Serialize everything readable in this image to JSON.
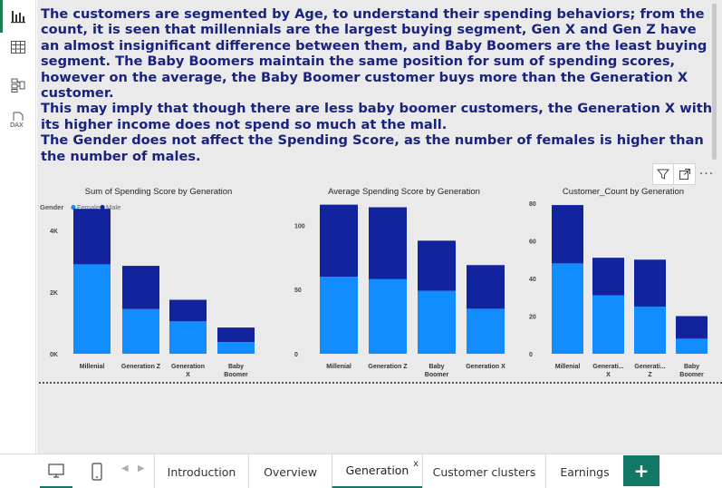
{
  "rail": {
    "items": [
      {
        "name": "report-view-icon",
        "active": true
      },
      {
        "name": "data-view-icon",
        "active": false
      },
      {
        "name": "model-view-icon",
        "active": false
      },
      {
        "name": "dax-query-view-icon",
        "active": false,
        "label": "DAX"
      }
    ]
  },
  "narrative": {
    "paragraphs": [
      "The customers are segmented by Age, to understand their spending behaviors; from the count, it is seen that millennials are the largest buying segment, Gen X and Gen Z have an almost insignificant difference between them, and Baby Boomers are the least buying segment. The Baby Boomers maintain the same position for sum of spending scores, however on the average, the Baby Boomer customer buys more than the Generation X customer.",
      "This may imply that though there are less baby boomer customers, the Generation X with its higher income does not spend so much at the mall.",
      "The Gender does not affect the Spending Score, as the number of females is higher than the number of males."
    ]
  },
  "visual_header": {
    "more_label": "···"
  },
  "colors": {
    "female": "#118dff",
    "male": "#12239e",
    "axis_text": "#444444",
    "title_text": "#252423"
  },
  "legend": {
    "title": "Gender",
    "items": [
      "Female",
      "Male"
    ]
  },
  "chart_data": [
    {
      "type": "bar",
      "stacked": true,
      "title": "Sum of Spending Score by Generation",
      "categories": [
        "Millenial",
        "Generation Z",
        "Generation X",
        "Baby Boomer"
      ],
      "series": [
        {
          "name": "Female",
          "values": [
            2900,
            1450,
            1050,
            380
          ]
        },
        {
          "name": "Male",
          "values": [
            1800,
            1400,
            700,
            470
          ]
        }
      ],
      "ylim": [
        0,
        5000
      ],
      "yticks": [
        0,
        2000,
        4000
      ],
      "yticklabels": [
        "0K",
        "2K",
        "4K"
      ],
      "legend": "top-left",
      "grid": false
    },
    {
      "type": "bar",
      "stacked": true,
      "title": "Average Spending Score by Generation",
      "categories": [
        "Millenial",
        "Generation Z",
        "Baby Boomer",
        "Generation X"
      ],
      "series": [
        {
          "name": "Female",
          "values": [
            60,
            58,
            49,
            35
          ]
        },
        {
          "name": "Male",
          "values": [
            56,
            56,
            39,
            34
          ]
        }
      ],
      "ylim": [
        0,
        120
      ],
      "yticks": [
        0,
        50,
        100
      ],
      "yticklabels": [
        "0",
        "50",
        "100"
      ],
      "grid": false
    },
    {
      "type": "bar",
      "stacked": true,
      "title": "Customer_Count by Generation",
      "categories": [
        "Millenial",
        "Generati...",
        "Generati...",
        "Baby Boomer"
      ],
      "series": [
        {
          "name": "Female",
          "values": [
            48,
            31,
            25,
            8
          ]
        },
        {
          "name": "Male",
          "values": [
            31,
            20,
            25,
            12
          ]
        }
      ],
      "ylim": [
        0,
        80
      ],
      "yticks": [
        0,
        20,
        40,
        60,
        80
      ],
      "yticklabels": [
        "0",
        "20",
        "40",
        "60",
        "80"
      ],
      "grid": false
    }
  ],
  "tabs": {
    "items": [
      {
        "label": "Introduction",
        "active": false
      },
      {
        "label": "Overview",
        "active": false
      },
      {
        "label": "Generation",
        "active": true
      },
      {
        "label": "Customer clusters",
        "active": false
      },
      {
        "label": "Earnings",
        "active": false
      }
    ],
    "close_label": "x",
    "add_label": "+"
  }
}
